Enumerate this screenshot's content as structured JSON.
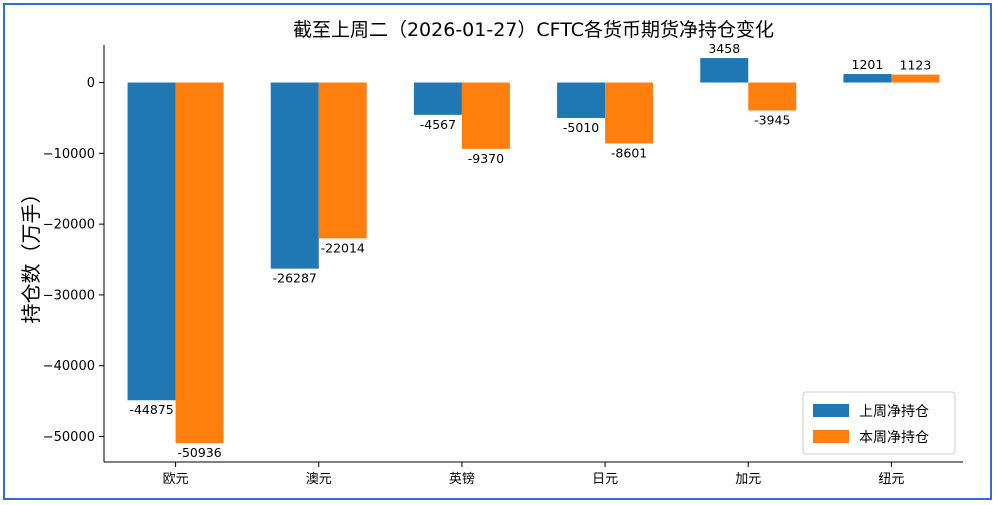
{
  "chart_data": {
    "type": "bar",
    "title": "截至上周二（2026-01-27）CFTC各货币期货净持仓变化",
    "xlabel": "",
    "ylabel": "持仓数（万手）",
    "categories": [
      "欧元",
      "澳元",
      "英镑",
      "日元",
      "加元",
      "纽元"
    ],
    "series": [
      {
        "name": "上周净持仓",
        "color": "#1f77b4",
        "values": [
          -44875,
          -26287,
          -4567,
          -5010,
          3458,
          1201
        ]
      },
      {
        "name": "本周净持仓",
        "color": "#ff7f0e",
        "values": [
          -50936,
          -22014,
          -9370,
          -8601,
          -3945,
          1123
        ]
      }
    ],
    "ylim": [
      -53600,
      5300
    ],
    "yticks": [
      0,
      -10000,
      -20000,
      -30000,
      -40000,
      -50000
    ],
    "yticklabels": [
      "0",
      "−10000",
      "−20000",
      "−30000",
      "−40000",
      "−50000"
    ],
    "legend_position": "bottom-right",
    "grid": false
  },
  "colors": {
    "frame_border": "#2e6fd6"
  }
}
